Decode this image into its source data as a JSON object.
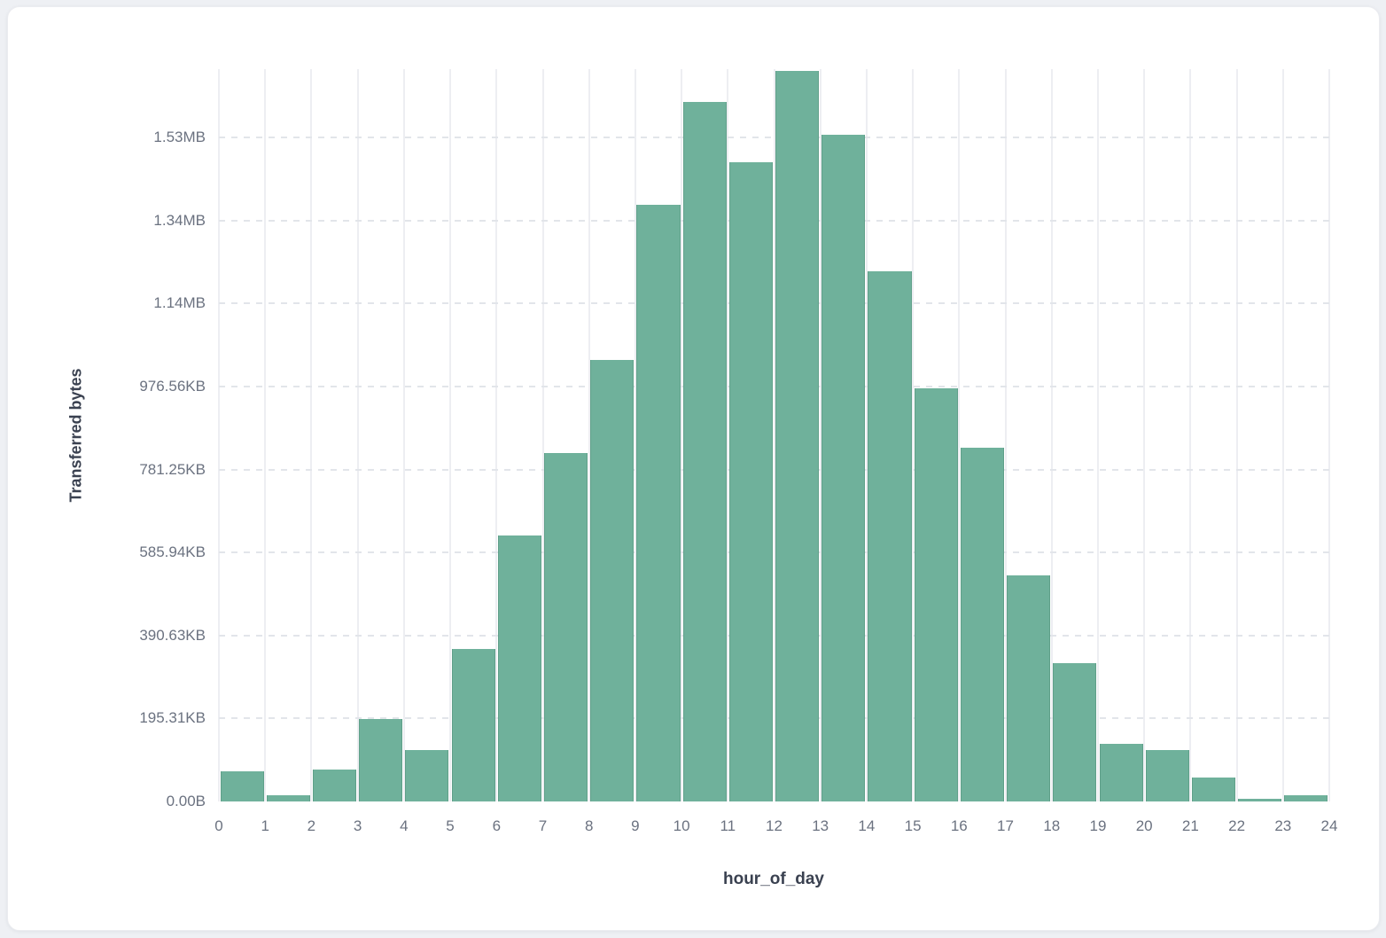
{
  "page": {
    "background_color": "#eef0f4",
    "card_background_color": "#ffffff"
  },
  "chart_data": {
    "type": "bar",
    "subtype": "histogram",
    "title": "",
    "xlabel": "hour_of_day",
    "ylabel": "Transferred bytes",
    "legend": "none",
    "bar_color": "#6FB19B",
    "grid": {
      "vertical": "solid",
      "horizontal": "dashed",
      "vertical_color": "#edeef2",
      "horizontal_color": "#e2e5ea"
    },
    "xlim": [
      0,
      24
    ],
    "ylim_bytes": [
      0,
      1765000
    ],
    "x_tick_labels": [
      "0",
      "1",
      "2",
      "3",
      "4",
      "5",
      "6",
      "7",
      "8",
      "9",
      "10",
      "11",
      "12",
      "13",
      "14",
      "15",
      "16",
      "17",
      "18",
      "19",
      "20",
      "21",
      "22",
      "23",
      "24"
    ],
    "y_ticks": [
      {
        "label": "0.00B",
        "bytes": 0
      },
      {
        "label": "195.31KB",
        "bytes": 200000
      },
      {
        "label": "390.63KB",
        "bytes": 400000
      },
      {
        "label": "585.94KB",
        "bytes": 600000
      },
      {
        "label": "781.25KB",
        "bytes": 800000
      },
      {
        "label": "976.56KB",
        "bytes": 1000000
      },
      {
        "label": "1.14MB",
        "bytes": 1200000
      },
      {
        "label": "1.34MB",
        "bytes": 1400000
      },
      {
        "label": "1.53MB",
        "bytes": 1600000
      }
    ],
    "categories": [
      0,
      1,
      2,
      3,
      4,
      5,
      6,
      7,
      8,
      9,
      10,
      11,
      12,
      13,
      14,
      15,
      16,
      17,
      18,
      19,
      20,
      21,
      22,
      23
    ],
    "values": [
      73000,
      14000,
      77000,
      198000,
      125000,
      368000,
      642000,
      839000,
      1064000,
      1439000,
      1686000,
      1540000,
      1760000,
      1608000,
      1277000,
      995000,
      852000,
      546000,
      334000,
      139000,
      123000,
      57000,
      6000,
      14000
    ],
    "values_unit": "bytes"
  }
}
